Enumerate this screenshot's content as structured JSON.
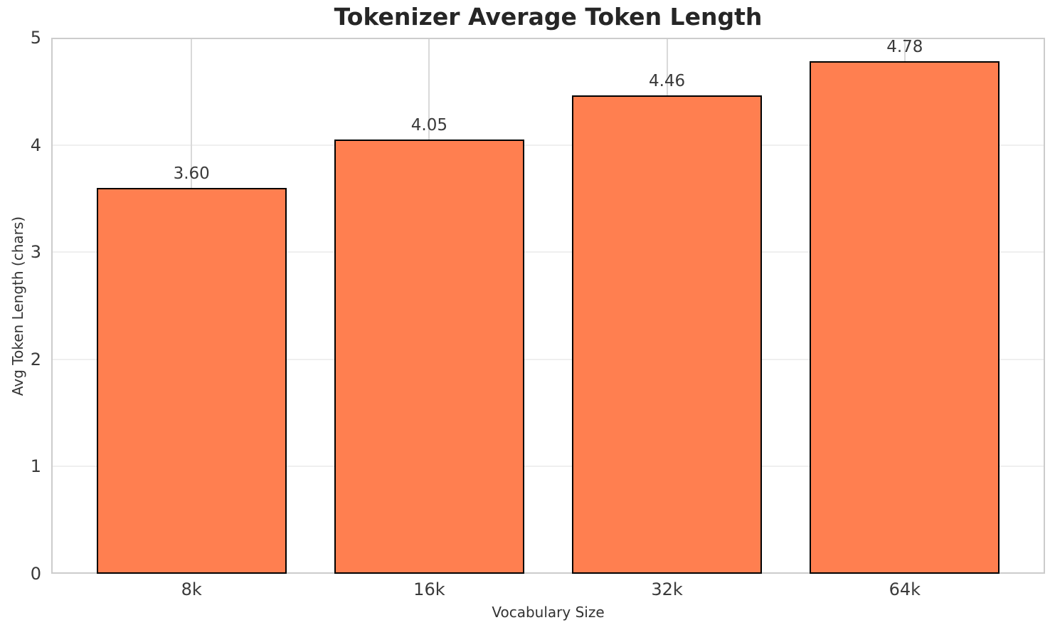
{
  "chart_data": {
    "type": "bar",
    "title": "Tokenizer Average Token Length",
    "xlabel": "Vocabulary Size",
    "ylabel": "Avg Token Length (chars)",
    "categories": [
      "8k",
      "16k",
      "32k",
      "64k"
    ],
    "values": [
      3.6,
      4.05,
      4.46,
      4.78
    ],
    "value_labels": [
      "3.60",
      "4.05",
      "4.46",
      "4.78"
    ],
    "ylim": [
      0,
      5
    ],
    "yticks": [
      0,
      1,
      2,
      3,
      4,
      5
    ],
    "xlim": [
      -0.59,
      3.59
    ],
    "bar_width_units": 0.8,
    "grid": "on",
    "legend": "none",
    "colors": {
      "bar_fill": "#FF7F50",
      "bar_edge": "#000000",
      "grid_horizontal": "#efefef",
      "grid_vertical": "#d9d9d9",
      "spine": "#cccccc",
      "title_text": "#262626",
      "tick_text": "#3a3a3a",
      "axis_label_text": "#333333",
      "background": "#ffffff"
    }
  }
}
